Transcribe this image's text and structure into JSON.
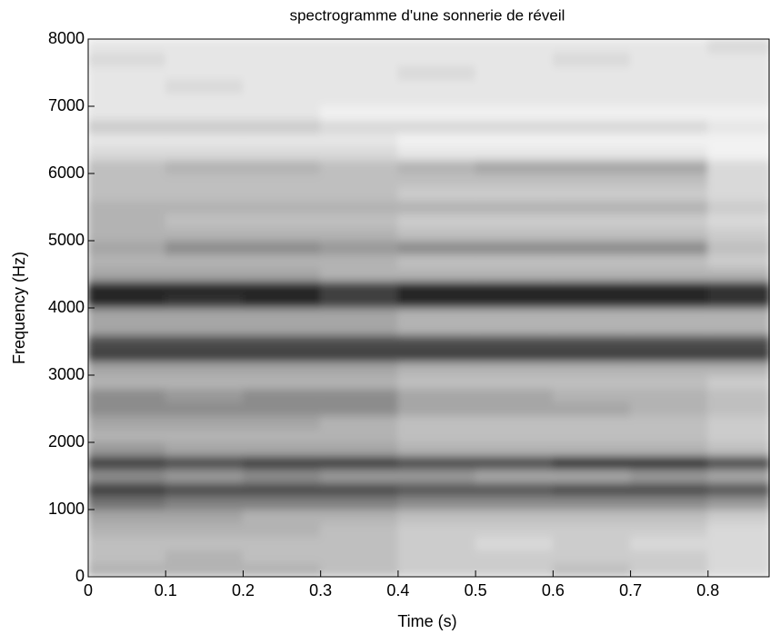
{
  "chart_data": {
    "type": "heatmap",
    "title": "spectrogramme d'une sonnerie de réveil",
    "x_label": "Time (s)",
    "y_label": "Frequency (Hz)",
    "xlim": [
      0,
      0.88
    ],
    "ylim": [
      0,
      8000
    ],
    "xticks": [
      0,
      0.1,
      0.2,
      0.3,
      0.4,
      0.5,
      0.6,
      0.7,
      0.8
    ],
    "yticks": [
      0,
      1000,
      2000,
      3000,
      4000,
      5000,
      6000,
      7000,
      8000
    ],
    "x": [
      0,
      0.1,
      0.2,
      0.3,
      0.4,
      0.5,
      0.6,
      0.7,
      0.8,
      0.88
    ],
    "y": [
      0,
      200,
      400,
      600,
      800,
      1000,
      1200,
      1400,
      1600,
      1800,
      2000,
      2200,
      2400,
      2600,
      2800,
      3000,
      3200,
      3400,
      3600,
      3800,
      4000,
      4200,
      4400,
      4600,
      4800,
      5000,
      5200,
      5400,
      5600,
      5800,
      6000,
      6200,
      6400,
      6600,
      6800,
      7000,
      7200,
      7400,
      7600,
      7800,
      8000
    ],
    "values": [
      [
        0.3,
        0.3,
        0.3,
        0.25,
        0.2,
        0.2,
        0.25,
        0.2,
        0.15
      ],
      [
        0.25,
        0.3,
        0.25,
        0.25,
        0.2,
        0.2,
        0.2,
        0.2,
        0.15
      ],
      [
        0.25,
        0.25,
        0.25,
        0.25,
        0.2,
        0.15,
        0.2,
        0.15,
        0.15
      ],
      [
        0.3,
        0.3,
        0.3,
        0.25,
        0.2,
        0.2,
        0.2,
        0.2,
        0.15
      ],
      [
        0.35,
        0.35,
        0.3,
        0.3,
        0.25,
        0.25,
        0.25,
        0.25,
        0.2
      ],
      [
        0.55,
        0.5,
        0.5,
        0.5,
        0.45,
        0.45,
        0.45,
        0.45,
        0.4
      ],
      [
        0.75,
        0.7,
        0.7,
        0.7,
        0.65,
        0.65,
        0.7,
        0.7,
        0.65
      ],
      [
        0.45,
        0.4,
        0.45,
        0.4,
        0.4,
        0.35,
        0.35,
        0.4,
        0.35
      ],
      [
        0.75,
        0.7,
        0.75,
        0.75,
        0.7,
        0.7,
        0.8,
        0.8,
        0.7
      ],
      [
        0.4,
        0.35,
        0.35,
        0.35,
        0.3,
        0.3,
        0.3,
        0.3,
        0.25
      ],
      [
        0.3,
        0.3,
        0.3,
        0.3,
        0.25,
        0.25,
        0.25,
        0.25,
        0.2
      ],
      [
        0.35,
        0.35,
        0.35,
        0.3,
        0.25,
        0.25,
        0.25,
        0.25,
        0.2
      ],
      [
        0.45,
        0.45,
        0.45,
        0.45,
        0.35,
        0.35,
        0.35,
        0.3,
        0.25
      ],
      [
        0.45,
        0.4,
        0.45,
        0.45,
        0.35,
        0.35,
        0.3,
        0.3,
        0.25
      ],
      [
        0.3,
        0.3,
        0.3,
        0.3,
        0.25,
        0.25,
        0.25,
        0.25,
        0.2
      ],
      [
        0.35,
        0.35,
        0.35,
        0.35,
        0.3,
        0.3,
        0.3,
        0.3,
        0.3
      ],
      [
        0.75,
        0.75,
        0.75,
        0.75,
        0.75,
        0.75,
        0.75,
        0.75,
        0.75
      ],
      [
        0.7,
        0.7,
        0.7,
        0.7,
        0.7,
        0.7,
        0.7,
        0.7,
        0.7
      ],
      [
        0.35,
        0.35,
        0.35,
        0.35,
        0.3,
        0.3,
        0.3,
        0.3,
        0.3
      ],
      [
        0.35,
        0.35,
        0.35,
        0.35,
        0.3,
        0.3,
        0.3,
        0.3,
        0.3
      ],
      [
        0.85,
        0.8,
        0.85,
        0.75,
        0.85,
        0.85,
        0.85,
        0.85,
        0.8
      ],
      [
        0.85,
        0.85,
        0.85,
        0.75,
        0.85,
        0.85,
        0.85,
        0.85,
        0.8
      ],
      [
        0.35,
        0.35,
        0.35,
        0.3,
        0.3,
        0.3,
        0.3,
        0.3,
        0.3
      ],
      [
        0.3,
        0.3,
        0.3,
        0.3,
        0.25,
        0.25,
        0.25,
        0.25,
        0.2
      ],
      [
        0.35,
        0.45,
        0.45,
        0.4,
        0.45,
        0.45,
        0.45,
        0.45,
        0.25
      ],
      [
        0.3,
        0.3,
        0.3,
        0.3,
        0.25,
        0.25,
        0.25,
        0.25,
        0.2
      ],
      [
        0.3,
        0.25,
        0.25,
        0.25,
        0.2,
        0.2,
        0.2,
        0.2,
        0.15
      ],
      [
        0.3,
        0.3,
        0.3,
        0.3,
        0.3,
        0.3,
        0.3,
        0.3,
        0.2
      ],
      [
        0.25,
        0.25,
        0.25,
        0.25,
        0.2,
        0.2,
        0.2,
        0.2,
        0.15
      ],
      [
        0.25,
        0.25,
        0.25,
        0.25,
        0.25,
        0.25,
        0.25,
        0.25,
        0.15
      ],
      [
        0.25,
        0.3,
        0.3,
        0.25,
        0.3,
        0.35,
        0.35,
        0.35,
        0.15
      ],
      [
        0.15,
        0.15,
        0.15,
        0.15,
        0.1,
        0.1,
        0.1,
        0.1,
        0.05
      ],
      [
        0.1,
        0.1,
        0.1,
        0.1,
        0.05,
        0.05,
        0.05,
        0.05,
        0.05
      ],
      [
        0.2,
        0.2,
        0.2,
        0.15,
        0.15,
        0.15,
        0.15,
        0.15,
        0.1
      ],
      [
        0.1,
        0.1,
        0.1,
        0.05,
        0.05,
        0.05,
        0.05,
        0.05,
        0.05
      ],
      [
        0.1,
        0.1,
        0.1,
        0.1,
        0.1,
        0.1,
        0.1,
        0.1,
        0.1
      ],
      [
        0.1,
        0.15,
        0.1,
        0.1,
        0.1,
        0.1,
        0.1,
        0.1,
        0.1
      ],
      [
        0.1,
        0.1,
        0.1,
        0.1,
        0.15,
        0.1,
        0.1,
        0.1,
        0.1
      ],
      [
        0.15,
        0.1,
        0.1,
        0.1,
        0.1,
        0.1,
        0.15,
        0.1,
        0.1
      ],
      [
        0.1,
        0.1,
        0.1,
        0.1,
        0.1,
        0.1,
        0.1,
        0.1,
        0.15
      ]
    ]
  }
}
